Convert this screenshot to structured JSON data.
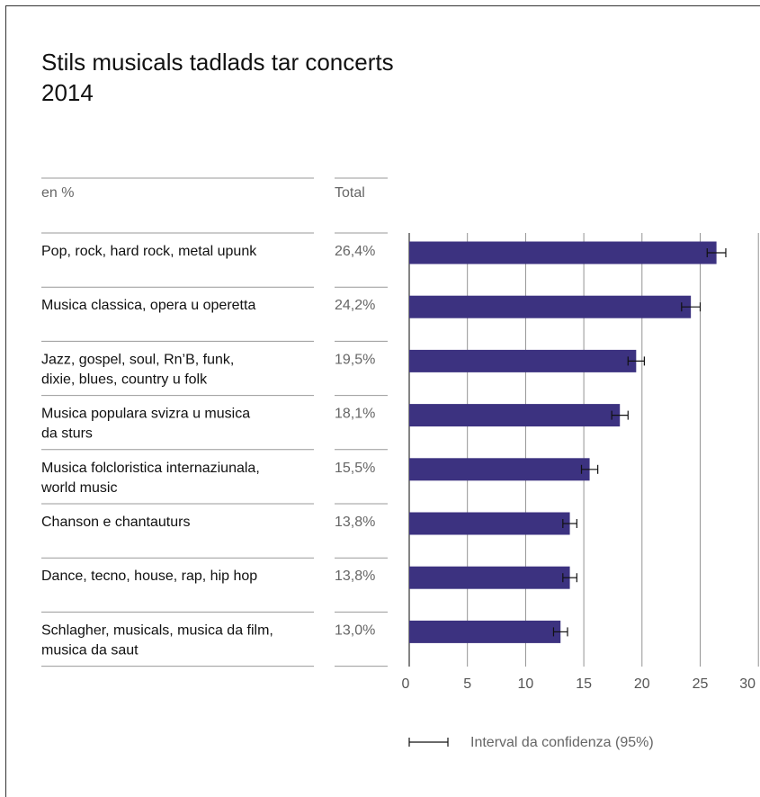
{
  "chart_data": {
    "type": "bar",
    "orientation": "horizontal",
    "title": [
      "Stils musicals tadlads tar concerts",
      "2014"
    ],
    "unit_header": "en %",
    "value_header": "Total",
    "categories": [
      [
        "Pop, rock, hard rock, metal upunk"
      ],
      [
        "Musica classica, opera u operetta"
      ],
      [
        "Jazz, gospel, soul, Rn’B, funk,",
        "dixie, blues, country u folk"
      ],
      [
        "Musica populara svizra u musica",
        "da sturs"
      ],
      [
        "Musica folcloristica internaziunala,",
        "world music"
      ],
      [
        "Chanson e chantauturs"
      ],
      [
        "Dance, tecno, house, rap, hip hop"
      ],
      [
        "Schlagher, musicals, musica da film,",
        "musica da saut"
      ]
    ],
    "value_labels": [
      "26,4%",
      "24,2%",
      "19,5%",
      "18,1%",
      "15,5%",
      "13,8%",
      "13,8%",
      "13,0%"
    ],
    "values": [
      26.4,
      24.2,
      19.5,
      18.1,
      15.5,
      13.8,
      13.8,
      13.0
    ],
    "error_bars": [
      [
        25.6,
        27.2
      ],
      [
        23.4,
        25.0
      ],
      [
        18.8,
        20.2
      ],
      [
        17.4,
        18.8
      ],
      [
        14.8,
        16.2
      ],
      [
        13.2,
        14.4
      ],
      [
        13.2,
        14.4
      ],
      [
        12.4,
        13.6
      ]
    ],
    "xlim": [
      0,
      30
    ],
    "xticks": [
      "0",
      "5",
      "10",
      "15",
      "20",
      "25",
      "30"
    ],
    "grid": true,
    "legend_label": "Interval da confidenza (95%)",
    "colors": {
      "bar": "#3c3280",
      "error_bar": "#111111",
      "grid": "#888888",
      "separator": "#999999",
      "axis": "#333333"
    }
  }
}
